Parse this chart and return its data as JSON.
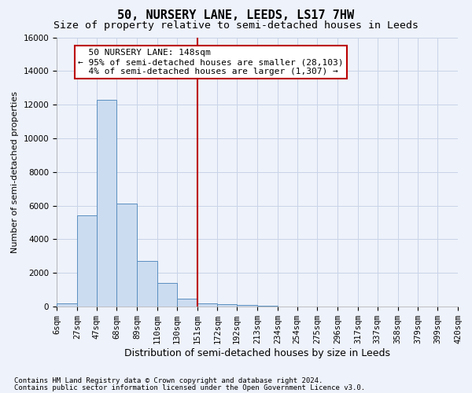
{
  "title": "50, NURSERY LANE, LEEDS, LS17 7HW",
  "subtitle": "Size of property relative to semi-detached houses in Leeds",
  "xlabel": "Distribution of semi-detached houses by size in Leeds",
  "ylabel": "Number of semi-detached properties",
  "footnote1": "Contains HM Land Registry data © Crown copyright and database right 2024.",
  "footnote2": "Contains public sector information licensed under the Open Government Licence v3.0.",
  "bar_edges": [
    6,
    27,
    47,
    68,
    89,
    110,
    130,
    151,
    172,
    192,
    213,
    234,
    254,
    275,
    296,
    317,
    337,
    358,
    379,
    399,
    420
  ],
  "bar_heights": [
    200,
    5400,
    12300,
    6100,
    2700,
    1400,
    450,
    200,
    130,
    100,
    70,
    0,
    0,
    0,
    0,
    0,
    0,
    0,
    0,
    0
  ],
  "bar_color": "#ccdcf0",
  "bar_edge_color": "#5a8fc0",
  "grid_color": "#c8d4e8",
  "bg_color": "#eef2fa",
  "vline_x": 151,
  "vline_color": "#bb0000",
  "annotation_text": "  50 NURSERY LANE: 148sqm\n← 95% of semi-detached houses are smaller (28,103)\n  4% of semi-detached houses are larger (1,307) →",
  "annotation_box_color": "#ffffff",
  "annotation_border_color": "#bb0000",
  "ylim": [
    0,
    16000
  ],
  "yticks": [
    0,
    2000,
    4000,
    6000,
    8000,
    10000,
    12000,
    14000,
    16000
  ],
  "title_fontsize": 11,
  "subtitle_fontsize": 9.5,
  "xlabel_fontsize": 9,
  "ylabel_fontsize": 8,
  "tick_fontsize": 7.5,
  "annot_fontsize": 8
}
